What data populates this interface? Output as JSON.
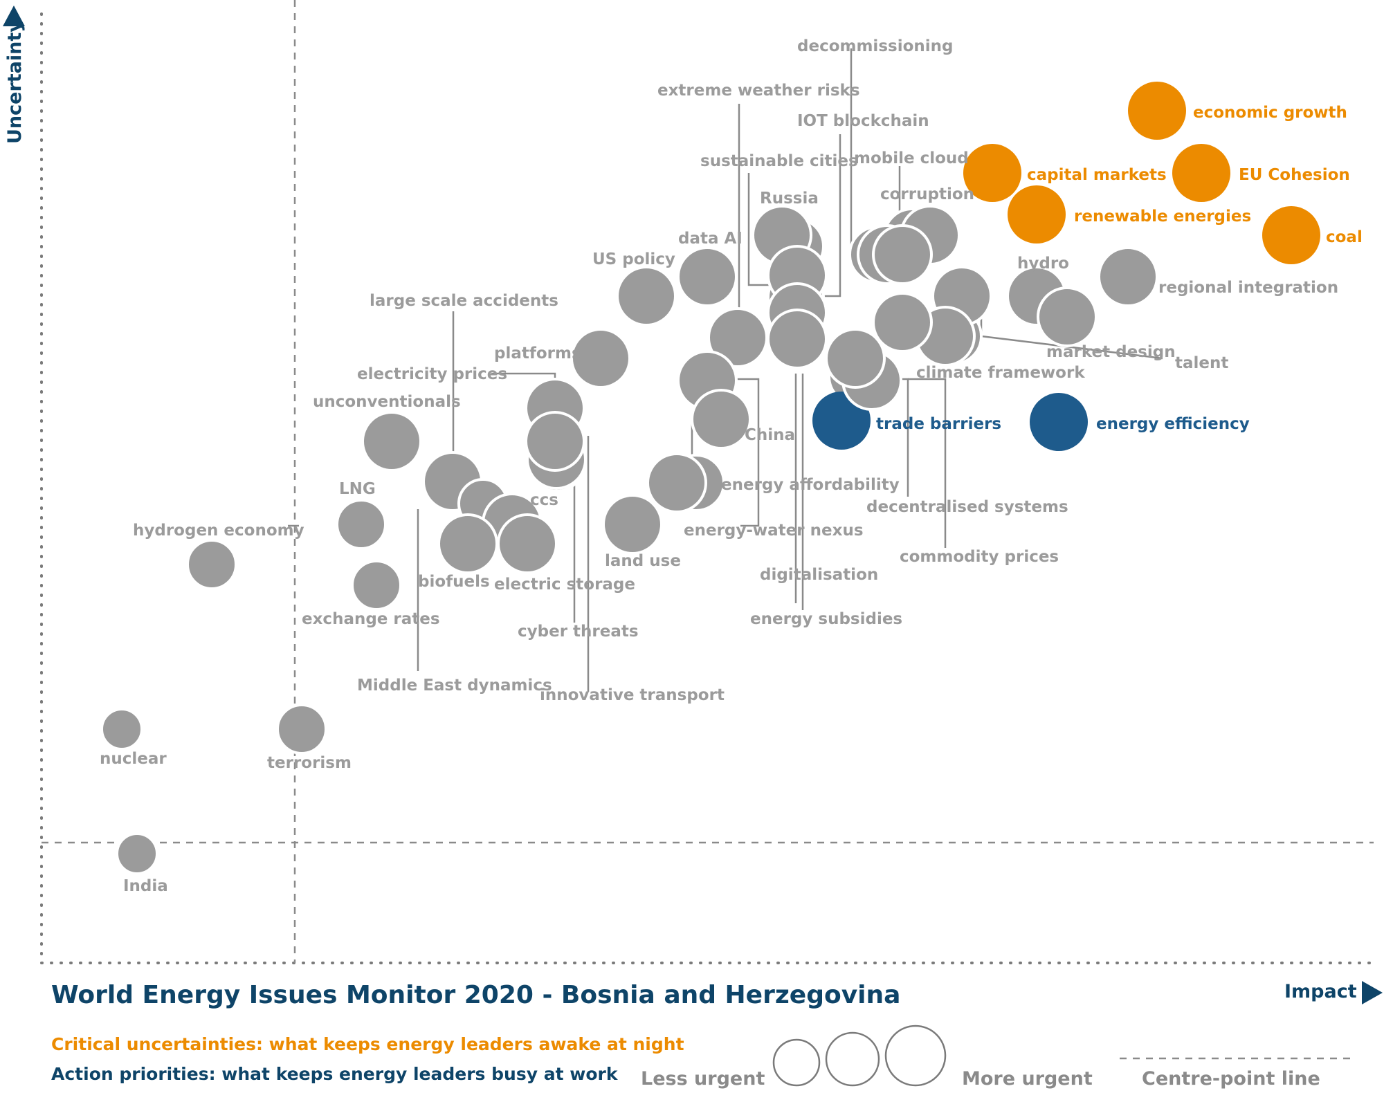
{
  "chart_data": {
    "type": "scatter",
    "title": "World Energy Issues Monitor 2020 - Bosnia and Herzegovina",
    "xlabel": "Impact",
    "ylabel": "Uncertainty",
    "xlim": [
      0,
      100
    ],
    "ylim": [
      0,
      100
    ],
    "centre_point": {
      "x": 18,
      "y": 12
    },
    "legend": {
      "critical": "Critical uncertainties: what keeps energy leaders awake at night",
      "action": "Action priorities: what keeps energy leaders busy at work",
      "size_low": "Less urgent",
      "size_high": "More urgent",
      "centre_line": "Centre-point  line"
    },
    "colors": {
      "critical": "#ec8b00",
      "action": "#1e5b8c",
      "other": "#9b9b9b",
      "axis": "#0e4468"
    },
    "points": [
      {
        "name": "economic growth",
        "x": 82.5,
        "y": 92.5,
        "urgency": 5,
        "category": "critical"
      },
      {
        "name": "EU Cohesion",
        "x": 85.8,
        "y": 86.0,
        "urgency": 5,
        "category": "critical"
      },
      {
        "name": "capital markets",
        "x": 70.6,
        "y": 86.0,
        "urgency": 5,
        "category": "critical"
      },
      {
        "name": "renewable energies",
        "x": 73.7,
        "y": 81.5,
        "urgency": 5,
        "category": "critical"
      },
      {
        "name": "coal",
        "x": 91.8,
        "y": 79.5,
        "urgency": 5,
        "category": "critical"
      },
      {
        "name": "trade barriers",
        "x": 59.5,
        "y": 58.0,
        "urgency": 5,
        "category": "action"
      },
      {
        "name": "energy efficiency",
        "x": 75.5,
        "y": 58.0,
        "urgency": 5,
        "category": "action"
      },
      {
        "name": "regional integration",
        "x": 79.5,
        "y": 72.0,
        "urgency": 5,
        "category": "other"
      },
      {
        "name": "hydro",
        "x": 72.8,
        "y": 70.0,
        "urgency": 5,
        "category": "other"
      },
      {
        "name": "market design",
        "x": 74.8,
        "y": 68.0,
        "urgency": 5,
        "category": "other"
      },
      {
        "name": "talent",
        "x": 67.0,
        "y": 71.5,
        "urgency": 5,
        "category": "other"
      },
      {
        "name": "climate framework",
        "x": 65.0,
        "y": 66.5,
        "urgency": 5,
        "category": "other"
      },
      {
        "name": "corruption",
        "x": 64.0,
        "y": 79.0,
        "urgency": 5,
        "category": "other"
      },
      {
        "name": "mobile cloud",
        "x": 62.5,
        "y": 77.0,
        "urgency": 5,
        "category": "other"
      },
      {
        "name": "decentralised systems",
        "x": 63.0,
        "y": 77.0,
        "urgency": 5,
        "category": "other"
      },
      {
        "name": "commodity prices",
        "x": 62.8,
        "y": 68.0,
        "urgency": 5,
        "category": "other"
      },
      {
        "name": "energy subsidies",
        "x": 61.0,
        "y": 62.0,
        "urgency": 5,
        "category": "other"
      },
      {
        "name": "digitalisation",
        "x": 60.0,
        "y": 64.0,
        "urgency": 5,
        "category": "other"
      },
      {
        "name": "Russia",
        "x": 55.0,
        "y": 79.5,
        "urgency": 5,
        "category": "other"
      },
      {
        "name": "sustainable cities",
        "x": 56.0,
        "y": 75.5,
        "urgency": 5,
        "category": "other"
      },
      {
        "name": "decommissioning",
        "x": 56.0,
        "y": 72.0,
        "urgency": 5,
        "category": "other"
      },
      {
        "name": "IOT blockchain",
        "x": 56.0,
        "y": 68.5,
        "urgency": 5,
        "category": "other"
      },
      {
        "name": "data AI",
        "x": 49.5,
        "y": 75.5,
        "urgency": 5,
        "category": "other"
      },
      {
        "name": "extreme weather risks",
        "x": 51.7,
        "y": 68.0,
        "urgency": 5,
        "category": "other"
      },
      {
        "name": "US policy",
        "x": 45.0,
        "y": 73.0,
        "urgency": 5,
        "category": "other"
      },
      {
        "name": "energy-water nexus",
        "x": 49.5,
        "y": 62.5,
        "urgency": 5,
        "category": "other"
      },
      {
        "name": "China",
        "x": 50.5,
        "y": 58.5,
        "urgency": 5,
        "category": "other"
      },
      {
        "name": "energy affordability",
        "x": 48.2,
        "y": 51.0,
        "urgency": 5,
        "category": "other"
      },
      {
        "name": "land use",
        "x": 44.0,
        "y": 46.5,
        "urgency": 5,
        "category": "other"
      },
      {
        "name": "platforms",
        "x": 41.7,
        "y": 64.0,
        "urgency": 5,
        "category": "other"
      },
      {
        "name": "electricity prices",
        "x": 38.5,
        "y": 59.5,
        "urgency": 5,
        "category": "other"
      },
      {
        "name": "cyber threats",
        "x": 38.5,
        "y": 55.5,
        "urgency": 5,
        "category": "other"
      },
      {
        "name": "innovative transport",
        "x": 38.5,
        "y": 57.0,
        "urgency": 5,
        "category": "other"
      },
      {
        "name": "unconventionals",
        "x": 26.0,
        "y": 56.0,
        "urgency": 5,
        "category": "other"
      },
      {
        "name": "large scale accidents",
        "x": 30.5,
        "y": 50.0,
        "urgency": 5,
        "category": "other"
      },
      {
        "name": "Middle East dynamics",
        "x": 32.5,
        "y": 48.0,
        "urgency": 4,
        "category": "other"
      },
      {
        "name": "ccs",
        "x": 35.0,
        "y": 46.0,
        "urgency": 5,
        "category": "other"
      },
      {
        "name": "biofuels",
        "x": 31.5,
        "y": 44.0,
        "urgency": 5,
        "category": "other"
      },
      {
        "name": "electric storage",
        "x": 35.8,
        "y": 44.0,
        "urgency": 5,
        "category": "other"
      },
      {
        "name": "LNG",
        "x": 24.0,
        "y": 46.5,
        "urgency": 4,
        "category": "other"
      },
      {
        "name": "exchange rates",
        "x": 25.0,
        "y": 40.5,
        "urgency": 4,
        "category": "other"
      },
      {
        "name": "hydrogen economy",
        "x": 12.5,
        "y": 42.0,
        "urgency": 4,
        "category": "other"
      },
      {
        "name": "nuclear",
        "x": 6.0,
        "y": 25.0,
        "urgency": 3,
        "category": "other"
      },
      {
        "name": "terrorism",
        "x": 19.0,
        "y": 25.0,
        "urgency": 4,
        "category": "other"
      },
      {
        "name": "India",
        "x": 7.0,
        "y": 11.5,
        "urgency": 3,
        "category": "other"
      }
    ]
  }
}
